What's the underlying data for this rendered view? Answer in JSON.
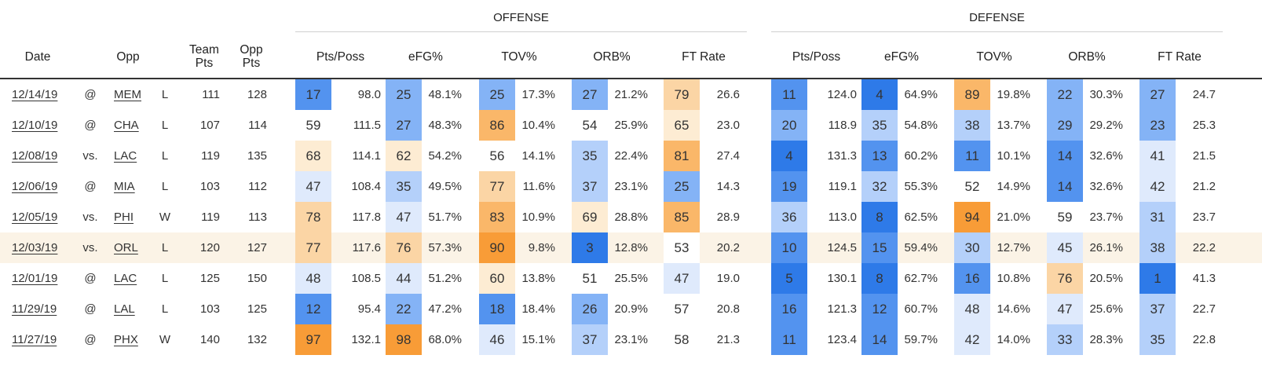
{
  "groups": {
    "offense": "OFFENSE",
    "defense": "DEFENSE"
  },
  "headers": {
    "date": "Date",
    "opp": "Opp",
    "team_pts": [
      "Team",
      "Pts"
    ],
    "opp_pts": [
      "Opp",
      "Pts"
    ],
    "offense": [
      "Pts/Poss",
      "eFG%",
      "TOV%",
      "ORB%",
      "FT Rate"
    ],
    "defense": [
      "Pts/Poss",
      "eFG%",
      "TOV%",
      "ORB%",
      "FT Rate"
    ]
  },
  "colors": {
    "scale": [
      "#2e7ae8",
      "#5393ef",
      "#84b3f6",
      "#b4d0fa",
      "#dfeafc",
      "#ffffff",
      "#fdecd3",
      "#fbd5a5",
      "#fab769",
      "#f89c37"
    ],
    "highlight_row": "#fbf3e6"
  },
  "games": [
    {
      "date": "12/14/19",
      "loc": "@",
      "opp": "MEM",
      "result": "L",
      "team_pts": "111",
      "opp_pts": "128",
      "off": [
        [
          "17",
          "98.0"
        ],
        [
          "25",
          "48.1%"
        ],
        [
          "25",
          "17.3%"
        ],
        [
          "27",
          "21.2%"
        ],
        [
          "79",
          "26.6"
        ]
      ],
      "def": [
        [
          "11",
          "124.0"
        ],
        [
          "4",
          "64.9%"
        ],
        [
          "89",
          "19.8%"
        ],
        [
          "22",
          "30.3%"
        ],
        [
          "27",
          "24.7"
        ]
      ]
    },
    {
      "date": "12/10/19",
      "loc": "@",
      "opp": "CHA",
      "result": "L",
      "team_pts": "107",
      "opp_pts": "114",
      "off": [
        [
          "59",
          "111.5"
        ],
        [
          "27",
          "48.3%"
        ],
        [
          "86",
          "10.4%"
        ],
        [
          "54",
          "25.9%"
        ],
        [
          "65",
          "23.0"
        ]
      ],
      "def": [
        [
          "20",
          "118.9"
        ],
        [
          "35",
          "54.8%"
        ],
        [
          "38",
          "13.7%"
        ],
        [
          "29",
          "29.2%"
        ],
        [
          "23",
          "25.3"
        ]
      ]
    },
    {
      "date": "12/08/19",
      "loc": "vs.",
      "opp": "LAC",
      "result": "L",
      "team_pts": "119",
      "opp_pts": "135",
      "off": [
        [
          "68",
          "114.1"
        ],
        [
          "62",
          "54.2%"
        ],
        [
          "56",
          "14.1%"
        ],
        [
          "35",
          "22.4%"
        ],
        [
          "81",
          "27.4"
        ]
      ],
      "def": [
        [
          "4",
          "131.3"
        ],
        [
          "13",
          "60.2%"
        ],
        [
          "11",
          "10.1%"
        ],
        [
          "14",
          "32.6%"
        ],
        [
          "41",
          "21.5"
        ]
      ]
    },
    {
      "date": "12/06/19",
      "loc": "@",
      "opp": "MIA",
      "result": "L",
      "team_pts": "103",
      "opp_pts": "112",
      "off": [
        [
          "47",
          "108.4"
        ],
        [
          "35",
          "49.5%"
        ],
        [
          "77",
          "11.6%"
        ],
        [
          "37",
          "23.1%"
        ],
        [
          "25",
          "14.3"
        ]
      ],
      "def": [
        [
          "19",
          "119.1"
        ],
        [
          "32",
          "55.3%"
        ],
        [
          "52",
          "14.9%"
        ],
        [
          "14",
          "32.6%"
        ],
        [
          "42",
          "21.2"
        ]
      ]
    },
    {
      "date": "12/05/19",
      "loc": "vs.",
      "opp": "PHI",
      "result": "W",
      "team_pts": "119",
      "opp_pts": "113",
      "off": [
        [
          "78",
          "117.8"
        ],
        [
          "47",
          "51.7%"
        ],
        [
          "83",
          "10.9%"
        ],
        [
          "69",
          "28.8%"
        ],
        [
          "85",
          "28.9"
        ]
      ],
      "def": [
        [
          "36",
          "113.0"
        ],
        [
          "8",
          "62.5%"
        ],
        [
          "94",
          "21.0%"
        ],
        [
          "59",
          "23.7%"
        ],
        [
          "31",
          "23.7"
        ]
      ]
    },
    {
      "date": "12/03/19",
      "loc": "vs.",
      "opp": "ORL",
      "result": "L",
      "team_pts": "120",
      "opp_pts": "127",
      "highlight": true,
      "off": [
        [
          "77",
          "117.6"
        ],
        [
          "76",
          "57.3%"
        ],
        [
          "90",
          "9.8%"
        ],
        [
          "3",
          "12.8%"
        ],
        [
          "53",
          "20.2"
        ]
      ],
      "def": [
        [
          "10",
          "124.5"
        ],
        [
          "15",
          "59.4%"
        ],
        [
          "30",
          "12.7%"
        ],
        [
          "45",
          "26.1%"
        ],
        [
          "38",
          "22.2"
        ]
      ]
    },
    {
      "date": "12/01/19",
      "loc": "@",
      "opp": "LAC",
      "result": "L",
      "team_pts": "125",
      "opp_pts": "150",
      "off": [
        [
          "48",
          "108.5"
        ],
        [
          "44",
          "51.2%"
        ],
        [
          "60",
          "13.8%"
        ],
        [
          "51",
          "25.5%"
        ],
        [
          "47",
          "19.0"
        ]
      ],
      "def": [
        [
          "5",
          "130.1"
        ],
        [
          "8",
          "62.7%"
        ],
        [
          "16",
          "10.8%"
        ],
        [
          "76",
          "20.5%"
        ],
        [
          "1",
          "41.3"
        ]
      ]
    },
    {
      "date": "11/29/19",
      "loc": "@",
      "opp": "LAL",
      "result": "L",
      "team_pts": "103",
      "opp_pts": "125",
      "off": [
        [
          "12",
          "95.4"
        ],
        [
          "22",
          "47.2%"
        ],
        [
          "18",
          "18.4%"
        ],
        [
          "26",
          "20.9%"
        ],
        [
          "57",
          "20.8"
        ]
      ],
      "def": [
        [
          "16",
          "121.3"
        ],
        [
          "12",
          "60.7%"
        ],
        [
          "48",
          "14.6%"
        ],
        [
          "47",
          "25.6%"
        ],
        [
          "37",
          "22.7"
        ]
      ]
    },
    {
      "date": "11/27/19",
      "loc": "@",
      "opp": "PHX",
      "result": "W",
      "team_pts": "140",
      "opp_pts": "132",
      "off": [
        [
          "97",
          "132.1"
        ],
        [
          "98",
          "68.0%"
        ],
        [
          "46",
          "15.1%"
        ],
        [
          "37",
          "23.1%"
        ],
        [
          "58",
          "21.3"
        ]
      ],
      "def": [
        [
          "11",
          "123.4"
        ],
        [
          "14",
          "59.7%"
        ],
        [
          "42",
          "14.0%"
        ],
        [
          "33",
          "28.3%"
        ],
        [
          "35",
          "22.8"
        ]
      ]
    }
  ]
}
